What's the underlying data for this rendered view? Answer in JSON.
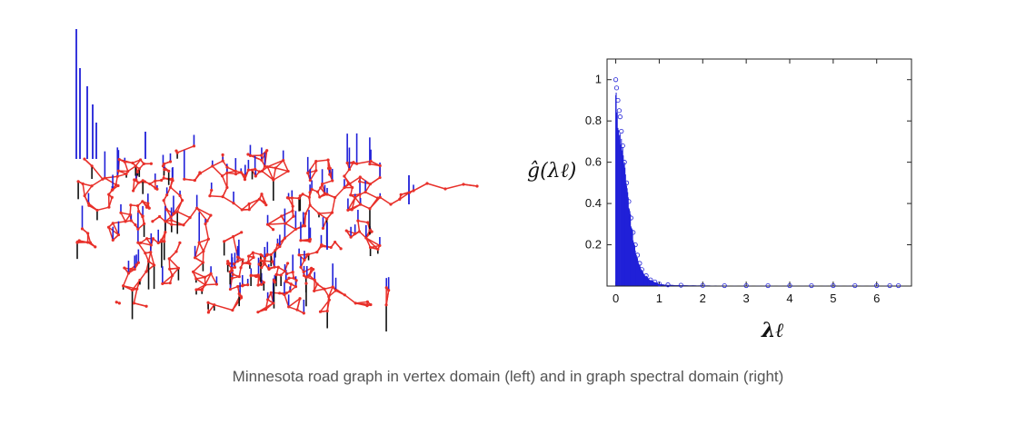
{
  "caption": "Minnesota road graph in vertex domain (left) and in graph spectral domain (right)",
  "colors": {
    "edges": "#e8302a",
    "signal_positive": "#2020d8",
    "signal_negative": "#111111"
  },
  "chart_data": [
    {
      "type": "network",
      "title": "",
      "node_color": "red",
      "edge_color": "red",
      "signal_positive_color": "blue",
      "signal_negative_color": "black"
    },
    {
      "type": "scatter",
      "title": "",
      "xlabel": "λℓ",
      "ylabel": "ĝ(λℓ)",
      "xlim": [
        -0.2,
        6.8
      ],
      "ylim": [
        0,
        1.1
      ],
      "xticks": [
        "0",
        "1",
        "2",
        "3",
        "4",
        "5",
        "6"
      ],
      "xtick_values": [
        0,
        1,
        2,
        3,
        4,
        5,
        6
      ],
      "yticks": [
        "0.2",
        "0.4",
        "0.6",
        "0.8",
        "1"
      ],
      "ytick_values": [
        0.2,
        0.4,
        0.6,
        0.8,
        1
      ],
      "grid": false,
      "series": [
        {
          "x": [
            0,
            0.02,
            0.05,
            0.08,
            0.1,
            0.13,
            0.16,
            0.2,
            0.25,
            0.3,
            0.35,
            0.4,
            0.45,
            0.5,
            0.55,
            0.6,
            0.7,
            0.8,
            0.9,
            1.0,
            1.2,
            1.5,
            2.0,
            2.5,
            3.0,
            3.5,
            4.0,
            4.5,
            5.0,
            5.5,
            6.0,
            6.3,
            6.5
          ],
          "y": [
            1.0,
            0.96,
            0.9,
            0.85,
            0.82,
            0.75,
            0.68,
            0.6,
            0.5,
            0.41,
            0.33,
            0.26,
            0.2,
            0.15,
            0.11,
            0.08,
            0.05,
            0.03,
            0.02,
            0.01,
            0.006,
            0.004,
            0.003,
            0.002,
            0.002,
            0.002,
            0.002,
            0.002,
            0.002,
            0.002,
            0.002,
            0.002,
            0.002
          ]
        }
      ]
    }
  ]
}
